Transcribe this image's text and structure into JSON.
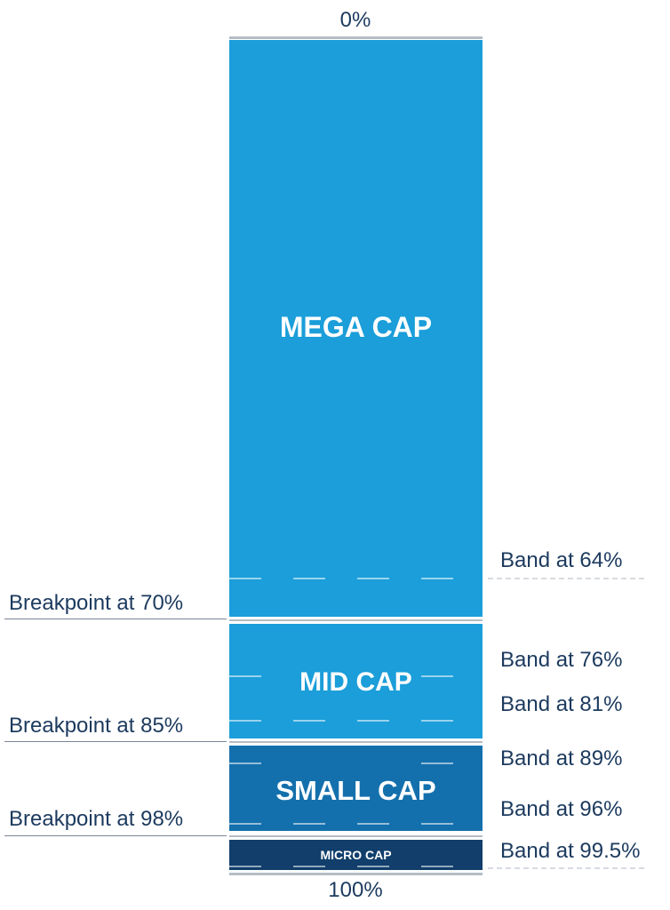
{
  "top_label": "0%",
  "bottom_label": "100%",
  "segments": [
    {
      "name": "MEGA CAP",
      "color": "#1b9ed9"
    },
    {
      "name": "MID CAP",
      "color": "#1b9ed9"
    },
    {
      "name": "SMALL CAP",
      "color": "#1470ad"
    },
    {
      "name": "MICRO CAP",
      "color": "#113e6b"
    }
  ],
  "breakpoints": [
    {
      "label": "Breakpoint at 70%",
      "value": 70
    },
    {
      "label": "Breakpoint at 85%",
      "value": 85
    },
    {
      "label": "Breakpoint at 98%",
      "value": 98
    }
  ],
  "bands": [
    {
      "label": "Band at 64%",
      "value": 64
    },
    {
      "label": "Band at 76%",
      "value": 76
    },
    {
      "label": "Band at 81%",
      "value": 81
    },
    {
      "label": "Band at 89%",
      "value": 89
    },
    {
      "label": "Band at 96%",
      "value": 96
    },
    {
      "label": "Band at 99.5%",
      "value": 99.5
    }
  ]
}
